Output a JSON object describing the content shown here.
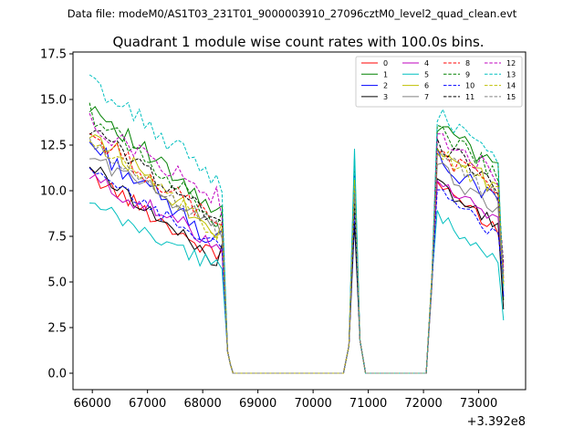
{
  "figure": {
    "suptitle": "Data file: modeM0/AS1T03_231T01_9000003910_27096cztM0_level2_quad_clean.evt"
  },
  "chart_data": {
    "type": "line",
    "title": "Quadrant 1 module wise count rates with 100.0s bins.",
    "xlabel": "",
    "ylabel": "",
    "x_offset_label": "+3.392e8",
    "xlim": [
      65650,
      73850
    ],
    "ylim": [
      -0.9,
      17.6
    ],
    "xticks": [
      66000,
      67000,
      68000,
      69000,
      70000,
      71000,
      72000,
      73000
    ],
    "yticks": [
      0.0,
      2.5,
      5.0,
      7.5,
      10.0,
      12.5,
      15.0,
      17.5
    ],
    "xtick_labels": [
      "66000",
      "67000",
      "68000",
      "69000",
      "70000",
      "71000",
      "72000",
      "73000"
    ],
    "ytick_labels": [
      "0.0",
      "2.5",
      "5.0",
      "7.5",
      "10.0",
      "12.5",
      "15.0",
      "17.5"
    ],
    "legend_loc": "upper right",
    "segments": [
      {
        "start": 65950,
        "end": 68350
      },
      {
        "start": 68450,
        "end": 70550
      },
      {
        "start": 70650,
        "end": 70850
      },
      {
        "start": 70950,
        "end": 72050
      },
      {
        "start": 72150,
        "end": 73450
      }
    ],
    "series": [
      {
        "name": "0",
        "color": "#ff0000",
        "dash": "solid",
        "level": 10.9,
        "slope": 0.28,
        "amp": 0.45,
        "spike": 11.2,
        "burst": 10.2,
        "end_drop": 5.8
      },
      {
        "name": "1",
        "color": "#008000",
        "dash": "solid",
        "level": 14.8,
        "slope": 0.38,
        "amp": 0.55,
        "spike": 11.8,
        "burst": 13.6,
        "end_drop": 4.0
      },
      {
        "name": "2",
        "color": "#0000ff",
        "dash": "solid",
        "level": 12.6,
        "slope": 0.34,
        "amp": 0.55,
        "spike": 10.8,
        "burst": 11.8,
        "end_drop": 4.2
      },
      {
        "name": "3",
        "color": "#000000",
        "dash": "solid",
        "level": 11.4,
        "slope": 0.33,
        "amp": 0.4,
        "spike": 8.2,
        "burst": 10.4,
        "end_drop": 3.5
      },
      {
        "name": "4",
        "color": "#bf00bf",
        "dash": "solid",
        "level": 10.7,
        "slope": 0.22,
        "amp": 0.5,
        "spike": 10.5,
        "burst": 10.6,
        "end_drop": 5.0
      },
      {
        "name": "5",
        "color": "#00bfbf",
        "dash": "solid",
        "level": 9.2,
        "slope": 0.21,
        "amp": 0.5,
        "spike": 12.3,
        "burst": 8.5,
        "end_drop": 2.9
      },
      {
        "name": "6",
        "color": "#bfbf00",
        "dash": "solid",
        "level": 13.3,
        "slope": 0.34,
        "amp": 0.6,
        "spike": 10.0,
        "burst": 12.4,
        "end_drop": 4.8
      },
      {
        "name": "7",
        "color": "#808080",
        "dash": "solid",
        "level": 11.9,
        "slope": 0.23,
        "amp": 0.45,
        "spike": 9.6,
        "burst": 11.3,
        "end_drop": 4.5
      },
      {
        "name": "8",
        "color": "#ff0000",
        "dash": "dashed",
        "level": 13.1,
        "slope": 0.3,
        "amp": 0.55,
        "spike": 10.2,
        "burst": 12.2,
        "end_drop": 5.2
      },
      {
        "name": "9",
        "color": "#008000",
        "dash": "dashed",
        "level": 14.3,
        "slope": 0.36,
        "amp": 0.55,
        "spike": 9.8,
        "burst": 13.3,
        "end_drop": 5.4
      },
      {
        "name": "10",
        "color": "#0000ff",
        "dash": "dashed",
        "level": 11.0,
        "slope": 0.25,
        "amp": 0.4,
        "spike": 8.8,
        "burst": 10.0,
        "end_drop": 5.0
      },
      {
        "name": "11",
        "color": "#000000",
        "dash": "dashed",
        "level": 13.4,
        "slope": 0.31,
        "amp": 0.5,
        "spike": 9.4,
        "burst": 12.7,
        "end_drop": 6.0
      },
      {
        "name": "12",
        "color": "#bf00bf",
        "dash": "dashed",
        "level": 13.7,
        "slope": 0.25,
        "amp": 0.55,
        "spike": 10.4,
        "burst": 13.2,
        "end_drop": 5.6
      },
      {
        "name": "13",
        "color": "#00bfbf",
        "dash": "dashed",
        "level": 16.0,
        "slope": 0.33,
        "amp": 0.55,
        "spike": 11.3,
        "burst": 14.2,
        "end_drop": 4.6
      },
      {
        "name": "14",
        "color": "#bfbf00",
        "dash": "dashed",
        "level": 12.8,
        "slope": 0.32,
        "amp": 0.5,
        "spike": 10.6,
        "burst": 12.2,
        "end_drop": 4.9
      },
      {
        "name": "15",
        "color": "#808080",
        "dash": "dashed",
        "level": 12.5,
        "slope": 0.28,
        "amp": 0.45,
        "spike": 9.9,
        "burst": 12.0,
        "end_drop": 5.3
      }
    ]
  }
}
